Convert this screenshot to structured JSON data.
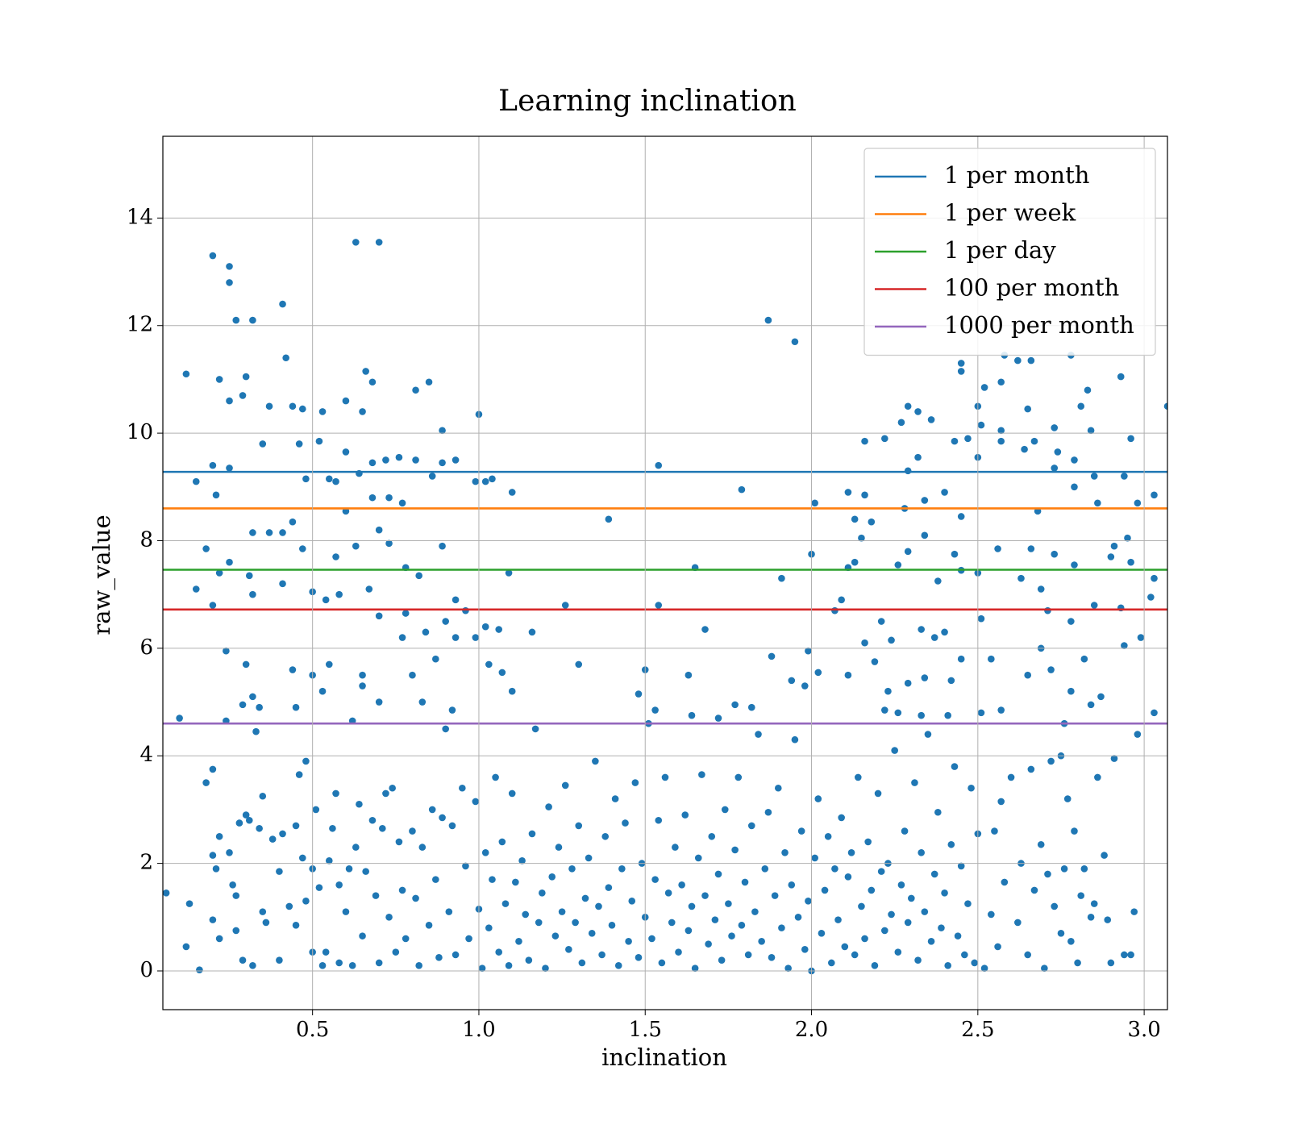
{
  "chart_data": {
    "type": "scatter",
    "title": "Learning inclination",
    "x_label": "inclination",
    "y_label": "raw_value",
    "color": "#1f77b4",
    "x": [
      0.2,
      0.25,
      0.25,
      0.27,
      0.32,
      0.41,
      0.42,
      0.63,
      0.7,
      0.12,
      0.22,
      0.3,
      0.29,
      0.25,
      0.66,
      0.68,
      0.37,
      0.44,
      0.47,
      0.53,
      0.6,
      0.65,
      0.81,
      0.85,
      1.0,
      0.89,
      0.35,
      0.46,
      0.52,
      0.6,
      0.2,
      0.25,
      0.21,
      0.15,
      0.48,
      0.55,
      0.57,
      0.64,
      0.68,
      0.72,
      0.76,
      0.81,
      0.86,
      0.89,
      0.93,
      0.99,
      1.02,
      1.04,
      1.1,
      0.6,
      0.68,
      0.73,
      0.77,
      0.32,
      0.37,
      0.41,
      0.44,
      0.47,
      0.18,
      0.25,
      0.22,
      0.31,
      0.57,
      0.63,
      0.7,
      0.73,
      0.89,
      1.39,
      1.54,
      1.79,
      1.09,
      0.78,
      0.82,
      0.15,
      0.2,
      0.32,
      0.41,
      0.5,
      0.54,
      0.58,
      0.67,
      0.7,
      0.78,
      0.9,
      0.93,
      0.96,
      1.02,
      1.06,
      1.16,
      1.26,
      1.54,
      1.65,
      1.68,
      0.77,
      0.84,
      0.93,
      0.99,
      0.24,
      0.3,
      0.44,
      0.5,
      0.55,
      0.65,
      0.8,
      0.87,
      1.03,
      1.07,
      1.3,
      1.5,
      1.63,
      0.32,
      0.29,
      0.34,
      0.45,
      0.53,
      0.65,
      0.7,
      0.83,
      0.92,
      1.1,
      1.48,
      1.64,
      1.77,
      1.82,
      1.53,
      0.1,
      0.24,
      0.62,
      1.72,
      1.87,
      1.95,
      2.45,
      2.45,
      2.58,
      2.62,
      2.66,
      2.78,
      2.57,
      2.52,
      2.83,
      2.93,
      2.29,
      2.32,
      2.36,
      2.27,
      2.5,
      2.65,
      2.81,
      2.84,
      3.07,
      2.73,
      2.51,
      2.57,
      2.16,
      2.22,
      2.43,
      2.47,
      2.67,
      2.96,
      2.57,
      2.64,
      2.74,
      2.5,
      2.32,
      2.29,
      2.73,
      2.79,
      2.85,
      2.94,
      2.01,
      2.11,
      2.16,
      2.13,
      2.18,
      2.28,
      2.34,
      2.4,
      2.45,
      2.79,
      2.86,
      2.98,
      3.03,
      2.68,
      2.15,
      2.29,
      2.34,
      2.43,
      2.56,
      2.66,
      2.73,
      2.91,
      2.95,
      2.0,
      2.11,
      2.13,
      2.26,
      2.38,
      2.45,
      2.5,
      2.63,
      2.69,
      2.79,
      2.9,
      2.96,
      3.03,
      1.91,
      2.09,
      2.07,
      2.21,
      2.4,
      2.37,
      2.51,
      2.71,
      2.78,
      2.85,
      2.93,
      2.99,
      3.02,
      2.16,
      2.24,
      2.33,
      2.69,
      2.54,
      2.45,
      1.88,
      1.99,
      2.11,
      2.19,
      2.23,
      2.29,
      2.34,
      2.42,
      2.65,
      2.72,
      2.82,
      2.78,
      2.87,
      3.03,
      2.22,
      2.26,
      2.33,
      2.41,
      2.51,
      2.57,
      2.84,
      2.76,
      2.94,
      1.94,
      1.98,
      2.02,
      0.06,
      0.12,
      0.13,
      0.16,
      0.18,
      0.2,
      0.2,
      0.21,
      0.22,
      0.22,
      0.2,
      0.25,
      0.26,
      0.27,
      0.27,
      0.28,
      0.29,
      0.3,
      0.31,
      0.32,
      0.33,
      0.34,
      0.35,
      0.35,
      0.36,
      0.38,
      0.4,
      0.4,
      0.41,
      0.43,
      0.45,
      0.45,
      0.46,
      0.47,
      0.48,
      0.48,
      0.5,
      0.5,
      0.51,
      0.52,
      0.53,
      0.54,
      0.55,
      0.56,
      0.57,
      0.58,
      0.58,
      0.6,
      0.61,
      0.62,
      0.63,
      0.64,
      0.65,
      0.66,
      0.68,
      0.69,
      0.7,
      0.71,
      0.72,
      0.73,
      0.74,
      0.75,
      0.76,
      0.77,
      0.78,
      0.8,
      0.81,
      0.82,
      0.83,
      0.85,
      0.86,
      0.87,
      0.88,
      0.89,
      0.9,
      0.91,
      0.92,
      0.93,
      0.95,
      0.96,
      0.97,
      0.99,
      1.0,
      1.01,
      1.02,
      1.03,
      1.04,
      1.05,
      1.06,
      1.07,
      1.08,
      1.09,
      1.1,
      1.11,
      1.12,
      1.13,
      1.14,
      1.15,
      1.16,
      1.17,
      1.18,
      1.19,
      1.2,
      1.21,
      1.22,
      1.23,
      1.24,
      1.25,
      1.26,
      1.27,
      1.28,
      1.29,
      1.3,
      1.31,
      1.32,
      1.33,
      1.34,
      1.35,
      1.36,
      1.37,
      1.38,
      1.39,
      1.4,
      1.41,
      1.42,
      1.43,
      1.44,
      1.45,
      1.46,
      1.47,
      1.48,
      1.49,
      1.5,
      1.51,
      1.52,
      1.53,
      1.54,
      1.55,
      1.56,
      1.57,
      1.58,
      1.59,
      1.6,
      1.61,
      1.62,
      1.63,
      1.64,
      1.65,
      1.66,
      1.67,
      1.68,
      1.69,
      1.7,
      1.71,
      1.72,
      1.73,
      1.74,
      1.75,
      1.76,
      1.77,
      1.78,
      1.79,
      1.8,
      1.81,
      1.82,
      1.83,
      1.84,
      1.85,
      1.86,
      1.87,
      1.88,
      1.89,
      1.9,
      1.91,
      1.92,
      1.93,
      1.94,
      1.95,
      1.96,
      1.97,
      1.98,
      1.99,
      2.0,
      2.01,
      2.02,
      2.03,
      2.04,
      2.05,
      2.06,
      2.07,
      2.08,
      2.09,
      2.1,
      2.11,
      2.12,
      2.13,
      2.14,
      2.15,
      2.16,
      2.17,
      2.18,
      2.19,
      2.2,
      2.21,
      2.22,
      2.23,
      2.24,
      2.25,
      2.26,
      2.27,
      2.28,
      2.29,
      2.3,
      2.31,
      2.32,
      2.33,
      2.34,
      2.35,
      2.36,
      2.37,
      2.38,
      2.39,
      2.4,
      2.41,
      2.42,
      2.43,
      2.44,
      2.45,
      2.46,
      2.47,
      2.48,
      2.49,
      2.5,
      2.52,
      2.54,
      2.55,
      2.56,
      2.57,
      2.58,
      2.6,
      2.62,
      2.63,
      2.65,
      2.66,
      2.67,
      2.69,
      2.7,
      2.71,
      2.72,
      2.73,
      2.75,
      2.76,
      2.77,
      2.78,
      2.79,
      2.8,
      2.81,
      2.82,
      2.84,
      2.85,
      2.86,
      2.88,
      2.89,
      2.9,
      2.91,
      2.94,
      2.96,
      2.97,
      2.98,
      2.75
    ],
    "values": [
      13.3,
      13.1,
      12.8,
      12.1,
      12.1,
      12.4,
      11.4,
      13.55,
      13.55,
      11.1,
      11.0,
      11.05,
      10.7,
      10.6,
      11.15,
      10.95,
      10.5,
      10.5,
      10.45,
      10.4,
      10.6,
      10.4,
      10.8,
      10.95,
      10.35,
      10.05,
      9.8,
      9.8,
      9.85,
      9.65,
      9.4,
      9.35,
      8.85,
      9.1,
      9.15,
      9.15,
      9.1,
      9.25,
      9.45,
      9.5,
      9.55,
      9.5,
      9.2,
      9.45,
      9.5,
      9.1,
      9.1,
      9.15,
      8.9,
      8.55,
      8.8,
      8.8,
      8.7,
      8.15,
      8.15,
      8.15,
      8.35,
      7.85,
      7.85,
      7.6,
      7.4,
      7.35,
      7.7,
      7.9,
      8.2,
      7.95,
      7.9,
      8.4,
      9.4,
      8.95,
      7.4,
      7.5,
      7.35,
      7.1,
      6.8,
      7.0,
      7.2,
      7.05,
      6.9,
      7.0,
      7.1,
      6.6,
      6.65,
      6.5,
      6.9,
      6.7,
      6.4,
      6.35,
      6.3,
      6.8,
      6.8,
      7.5,
      6.35,
      6.2,
      6.3,
      6.2,
      6.2,
      5.95,
      5.7,
      5.6,
      5.5,
      5.7,
      5.5,
      5.5,
      5.8,
      5.7,
      5.55,
      5.7,
      5.6,
      5.5,
      5.1,
      4.95,
      4.9,
      4.9,
      5.2,
      5.3,
      5.0,
      5.0,
      4.85,
      5.2,
      5.15,
      4.75,
      4.95,
      4.9,
      4.85,
      4.7,
      4.65,
      4.65,
      4.7,
      12.1,
      11.7,
      11.3,
      11.15,
      11.45,
      11.35,
      11.35,
      11.45,
      10.95,
      10.85,
      10.8,
      11.05,
      10.5,
      10.4,
      10.25,
      10.2,
      10.5,
      10.45,
      10.5,
      10.05,
      10.5,
      10.1,
      10.15,
      10.05,
      9.85,
      9.9,
      9.85,
      9.9,
      9.85,
      9.9,
      9.85,
      9.7,
      9.65,
      9.55,
      9.55,
      9.3,
      9.35,
      9.5,
      9.2,
      9.2,
      8.7,
      8.9,
      8.85,
      8.4,
      8.35,
      8.6,
      8.75,
      8.9,
      8.45,
      9.0,
      8.7,
      8.7,
      8.85,
      8.55,
      8.05,
      7.8,
      8.1,
      7.75,
      7.85,
      7.85,
      7.75,
      7.9,
      8.05,
      7.75,
      7.5,
      7.6,
      7.55,
      7.25,
      7.45,
      7.4,
      7.3,
      7.1,
      7.55,
      7.7,
      7.6,
      7.3,
      7.3,
      6.9,
      6.7,
      6.5,
      6.3,
      6.2,
      6.55,
      6.7,
      6.5,
      6.8,
      6.75,
      6.2,
      6.95,
      6.1,
      6.15,
      6.35,
      6.0,
      5.8,
      5.8,
      5.85,
      5.95,
      5.5,
      5.75,
      5.2,
      5.35,
      5.45,
      5.4,
      5.5,
      5.6,
      5.8,
      5.2,
      5.1,
      4.8,
      4.85,
      4.8,
      4.75,
      4.75,
      4.8,
      4.85,
      4.95,
      4.6,
      6.05,
      5.4,
      5.3,
      5.55,
      1.45,
      0.45,
      1.25,
      0.02,
      3.5,
      2.15,
      3.75,
      1.9,
      2.5,
      0.6,
      0.95,
      2.2,
      1.6,
      1.4,
      0.75,
      2.75,
      0.2,
      2.9,
      2.8,
      0.1,
      4.45,
      2.65,
      3.25,
      1.1,
      0.9,
      2.45,
      1.85,
      0.2,
      2.55,
      1.2,
      2.7,
      0.85,
      3.65,
      2.1,
      3.9,
      1.3,
      1.9,
      0.35,
      3.0,
      1.55,
      0.1,
      0.35,
      2.05,
      2.65,
      3.3,
      1.6,
      0.15,
      1.1,
      1.9,
      0.1,
      2.3,
      3.1,
      0.65,
      1.85,
      2.8,
      1.4,
      0.15,
      2.65,
      3.3,
      1.0,
      3.4,
      0.35,
      2.4,
      1.5,
      0.6,
      2.6,
      1.35,
      0.1,
      2.3,
      0.85,
      3.0,
      1.7,
      0.25,
      2.85,
      4.5,
      1.1,
      2.7,
      0.3,
      3.4,
      1.95,
      0.6,
      3.15,
      1.15,
      0.05,
      2.2,
      0.8,
      1.7,
      3.6,
      0.35,
      2.4,
      1.25,
      0.1,
      3.3,
      1.65,
      0.55,
      2.05,
      1.05,
      0.2,
      2.55,
      4.5,
      0.9,
      1.45,
      0.05,
      3.05,
      1.75,
      0.65,
      2.3,
      1.1,
      3.45,
      0.4,
      1.9,
      0.9,
      2.7,
      0.15,
      1.35,
      2.1,
      0.7,
      3.9,
      1.2,
      0.3,
      2.5,
      1.55,
      0.85,
      3.2,
      0.1,
      1.9,
      2.75,
      0.55,
      1.3,
      3.5,
      0.25,
      2.0,
      1.0,
      4.6,
      0.6,
      1.7,
      2.8,
      0.15,
      3.6,
      1.45,
      0.9,
      2.3,
      0.35,
      1.6,
      2.9,
      0.75,
      1.2,
      0.05,
      2.1,
      3.65,
      1.4,
      0.5,
      2.5,
      0.95,
      1.8,
      0.2,
      3.0,
      1.25,
      0.65,
      2.25,
      3.6,
      0.85,
      1.65,
      0.3,
      2.7,
      1.1,
      4.4,
      0.55,
      1.9,
      2.95,
      0.25,
      1.4,
      3.4,
      0.8,
      2.2,
      0.05,
      1.6,
      4.3,
      1.0,
      2.6,
      0.4,
      1.3,
      0.0,
      2.1,
      3.2,
      0.7,
      1.5,
      2.5,
      0.15,
      1.9,
      0.95,
      2.85,
      0.45,
      1.75,
      2.2,
      0.3,
      3.6,
      1.2,
      0.6,
      2.4,
      1.5,
      0.1,
      3.3,
      1.85,
      0.75,
      2.0,
      1.05,
      4.1,
      0.35,
      1.6,
      2.6,
      0.9,
      1.35,
      3.5,
      0.2,
      2.2,
      1.1,
      4.4,
      0.55,
      1.8,
      2.95,
      0.8,
      1.45,
      0.1,
      2.35,
      3.8,
      0.65,
      1.95,
      0.3,
      1.25,
      3.4,
      0.15,
      2.55,
      0.05,
      1.05,
      2.6,
      0.45,
      3.15,
      1.65,
      3.6,
      0.9,
      2.0,
      0.3,
      3.75,
      1.5,
      2.35,
      0.05,
      1.8,
      3.9,
      1.2,
      0.7,
      1.9,
      3.2,
      0.55,
      2.6,
      0.15,
      1.4,
      1.9,
      1.0,
      1.25,
      3.6,
      2.15,
      0.95,
      0.15,
      3.95,
      0.3,
      0.3,
      1.1,
      4.4,
      4.0
    ],
    "lines": [
      {
        "name": "1 per month",
        "color": "#1f77b4",
        "value": 9.28
      },
      {
        "name": "1 per week",
        "color": "#ff7f0e",
        "value": 8.6
      },
      {
        "name": "1 per day",
        "color": "#2ca02c",
        "value": 7.46
      },
      {
        "name": "100 per month",
        "color": "#d62728",
        "value": 6.72
      },
      {
        "name": "1000 per month",
        "color": "#9467bd",
        "value": 4.6
      }
    ],
    "xlim": [
      0.05,
      3.07
    ],
    "ylim": [
      -0.72,
      15.52
    ],
    "xticks": [
      0.5,
      {
        "value": 1,
        "label": "1.0"
      },
      1.5,
      {
        "value": 2,
        "label": "2.0"
      },
      2.5,
      {
        "value": 3,
        "label": "3.0"
      }
    ],
    "yticks": [
      0,
      2,
      4,
      6,
      8,
      10,
      12,
      14
    ],
    "grid": true,
    "legend": "upper right"
  }
}
